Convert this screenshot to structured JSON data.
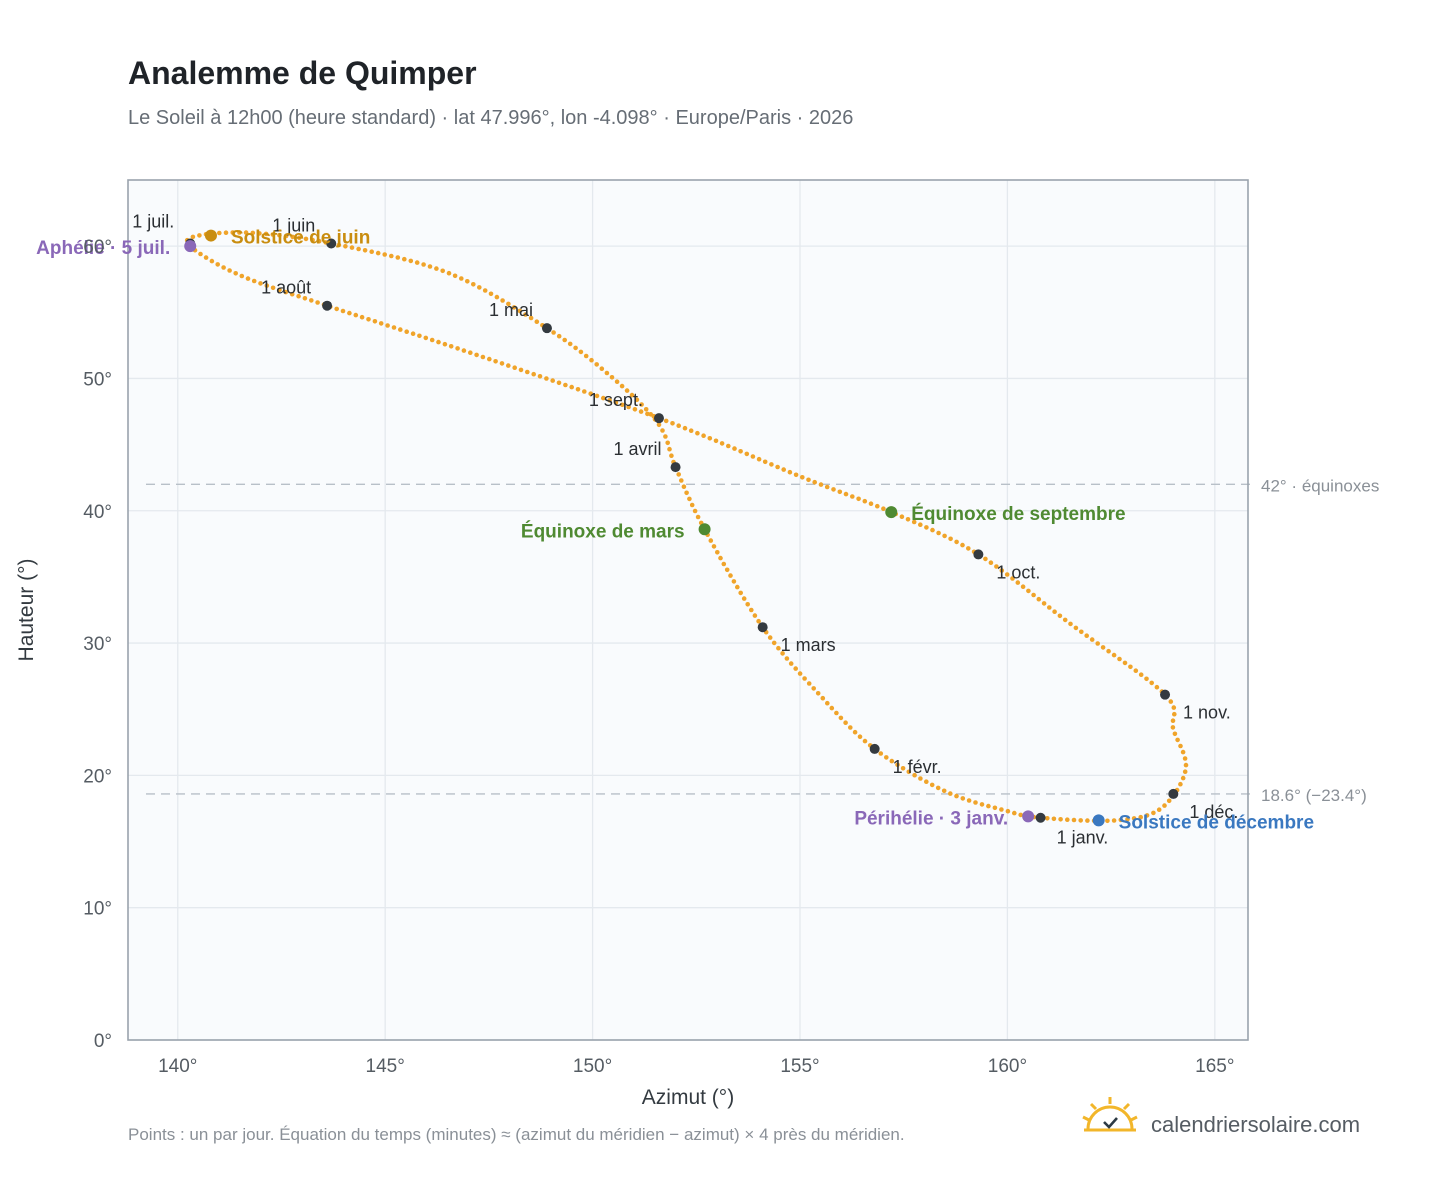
{
  "chart_data": {
    "type": "scatter",
    "title": "Analemme de Quimper",
    "subtitle": "Le Soleil à 12h00 (heure standard) · lat 47.996°, lon -4.098° · Europe/Paris · 2026",
    "xlabel": "Azimut (°)",
    "ylabel": "Hauteur (°)",
    "xlim": [
      138.8,
      165.8
    ],
    "ylim": [
      0,
      65
    ],
    "grid": true,
    "x_ticks": [
      {
        "value": 140,
        "label": "140°"
      },
      {
        "value": 145,
        "label": "145°"
      },
      {
        "value": 150,
        "label": "150°"
      },
      {
        "value": 155,
        "label": "155°"
      },
      {
        "value": 160,
        "label": "160°"
      },
      {
        "value": 165,
        "label": "165°"
      }
    ],
    "y_ticks": [
      {
        "value": 0,
        "label": "0°"
      },
      {
        "value": 10,
        "label": "10°"
      },
      {
        "value": 20,
        "label": "20°"
      },
      {
        "value": 30,
        "label": "30°"
      },
      {
        "value": 40,
        "label": "40°"
      },
      {
        "value": 50,
        "label": "50°"
      },
      {
        "value": 60,
        "label": "60°"
      }
    ],
    "curve_color": "#f0a42a",
    "path_anchors": [
      [
        160.8,
        16.8
      ],
      [
        162.6,
        16.6
      ],
      [
        163.7,
        17.5
      ],
      [
        164.3,
        20.5
      ],
      [
        164.0,
        23.5
      ],
      [
        163.8,
        26.1
      ],
      [
        161.5,
        31.5
      ],
      [
        159.3,
        36.7
      ],
      [
        157.2,
        39.9
      ],
      [
        155.0,
        42.6
      ],
      [
        151.6,
        47.0
      ],
      [
        147.0,
        52.0
      ],
      [
        143.6,
        55.5
      ],
      [
        141.5,
        57.8
      ],
      [
        140.3,
        60.0
      ],
      [
        140.5,
        60.8
      ],
      [
        141.8,
        61.0
      ],
      [
        143.7,
        60.2
      ],
      [
        146.5,
        58.0
      ],
      [
        148.9,
        53.8
      ],
      [
        150.5,
        50.0
      ],
      [
        151.6,
        46.5
      ],
      [
        152.0,
        43.3
      ],
      [
        152.7,
        38.6
      ],
      [
        154.1,
        31.2
      ],
      [
        155.5,
        26.0
      ],
      [
        156.8,
        22.0
      ],
      [
        158.5,
        18.8
      ],
      [
        160.0,
        17.3
      ],
      [
        160.8,
        16.8
      ]
    ],
    "month_markers": [
      {
        "label": "1 janv.",
        "x": 160.8,
        "y": 16.8,
        "anchor": "start",
        "dx": 16,
        "dy": 26
      },
      {
        "label": "1 févr.",
        "x": 156.8,
        "y": 22.0,
        "anchor": "start",
        "dx": 18,
        "dy": 24
      },
      {
        "label": "1 mars",
        "x": 154.1,
        "y": 31.2,
        "anchor": "start",
        "dx": 18,
        "dy": 24
      },
      {
        "label": "1 avril",
        "x": 152.0,
        "y": 43.3,
        "anchor": "end",
        "dx": -14,
        "dy": -12
      },
      {
        "label": "1 mai",
        "x": 148.9,
        "y": 53.8,
        "anchor": "end",
        "dx": -14,
        "dy": -12
      },
      {
        "label": "1 juin",
        "x": 143.7,
        "y": 60.2,
        "anchor": "end",
        "dx": -16,
        "dy": -12
      },
      {
        "label": "1 juil.",
        "x": 140.3,
        "y": 60.2,
        "anchor": "end",
        "dx": -16,
        "dy": -16
      },
      {
        "label": "1 août",
        "x": 143.6,
        "y": 55.5,
        "anchor": "end",
        "dx": -16,
        "dy": -12
      },
      {
        "label": "1 sept.",
        "x": 151.6,
        "y": 47.0,
        "anchor": "end",
        "dx": -16,
        "dy": -12
      },
      {
        "label": "1 oct.",
        "x": 159.3,
        "y": 36.7,
        "anchor": "start",
        "dx": 18,
        "dy": 24
      },
      {
        "label": "1 nov.",
        "x": 163.8,
        "y": 26.1,
        "anchor": "start",
        "dx": 18,
        "dy": 24
      },
      {
        "label": "1 déc.",
        "x": 164.0,
        "y": 18.6,
        "anchor": "start",
        "dx": 16,
        "dy": 24
      }
    ],
    "events": [
      {
        "label": "Solstice de juin",
        "x": 140.8,
        "y": 60.8,
        "color": "#c98d10",
        "anchor": "start",
        "dx": 20,
        "dy": 8
      },
      {
        "label": "Aphélie · 5 juil.",
        "x": 140.3,
        "y": 60.0,
        "color": "#8a68b8",
        "anchor": "end",
        "dx": -20,
        "dy": 8
      },
      {
        "label": "Équinoxe de mars",
        "x": 152.7,
        "y": 38.6,
        "color": "#4f8a32",
        "anchor": "end",
        "dx": -20,
        "dy": 8
      },
      {
        "label": "Équinoxe de septembre",
        "x": 157.2,
        "y": 39.9,
        "color": "#4f8a32",
        "anchor": "start",
        "dx": 20,
        "dy": 8
      },
      {
        "label": "Périhélie · 3 janv.",
        "x": 160.5,
        "y": 16.9,
        "color": "#8a68b8",
        "anchor": "end",
        "dx": -20,
        "dy": 8
      },
      {
        "label": "Solstice de décembre",
        "x": 162.2,
        "y": 16.6,
        "color": "#3a78c0",
        "anchor": "start",
        "dx": 20,
        "dy": 8
      }
    ],
    "reference_lines": [
      {
        "y": 42.0,
        "label": "42° · équinoxes"
      },
      {
        "y": 18.6,
        "label": "18.6° (−23.4°)"
      }
    ],
    "footnote": "Points : un par jour. Équation du temps (minutes) ≈ (azimut du méridien − azimut) × 4 près du méridien."
  },
  "branding": {
    "site": "calendriersolaire.com",
    "logo_icon": "sun-check-icon",
    "logo_color": "#f2b62a"
  }
}
